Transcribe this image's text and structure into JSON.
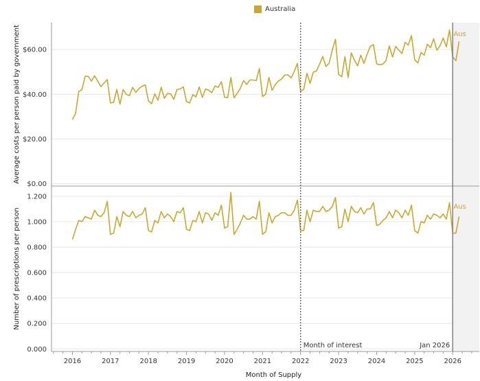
{
  "legend": {
    "label": "Australia",
    "color": "#c9a82c"
  },
  "colors": {
    "line": "#c9a82c",
    "grid": "#e6e6e6",
    "axis": "#999999",
    "shade": "#f2f2f2",
    "marker": "#888888"
  },
  "annotations": {
    "month_of_interest": "Month of interest",
    "jan_2026": "Jan 2026",
    "end_label": "Aus"
  },
  "chart_data": {
    "type": "line",
    "xlabel": "Month of Supply",
    "x_ticks": [
      "2016",
      "2017",
      "2018",
      "2019",
      "2020",
      "2021",
      "2022",
      "2023",
      "2024",
      "2025",
      "2026"
    ],
    "x_start": "2016-01",
    "x_domain": [
      2015.45,
      2026.7
    ],
    "markers": [
      {
        "at": "2022-01",
        "label": "Month of interest",
        "style": "dotted"
      },
      {
        "at": "2026-01",
        "label": "Jan 2026",
        "style": "solid"
      }
    ],
    "shaded_from": "2026-01",
    "panels": [
      {
        "ylabel": "Average costs per person paid by government",
        "ylim": [
          -1,
          72
        ],
        "y_ticks": [
          0,
          20,
          40,
          60
        ],
        "y_tick_labels": [
          "$0.00",
          "$20.00",
          "$40.00",
          "$60.00"
        ],
        "series": [
          {
            "name": "Australia",
            "values": [
              28.7,
              31.5,
              41.3,
              42,
              48,
              48,
              45.9,
              48.3,
              45.8,
              43.4,
              45,
              46.6,
              36.1,
              36.4,
              42.2,
              35.6,
              42.1,
              40,
              39.4,
              43.1,
              40.8,
              42.6,
              43.6,
              44.2,
              37,
              35.8,
              40.2,
              37.3,
              43.1,
              38.2,
              40.4,
              40.2,
              37.7,
              42.1,
              42.4,
              43.3,
              36.7,
              36.1,
              39.8,
              38.8,
              43.3,
              38.6,
              42.4,
              41.8,
              40.7,
              43.7,
              43.1,
              45.6,
              38.7,
              38.5,
              47.5,
              38.4,
              40.4,
              42.7,
              46.1,
              44.4,
              46.4,
              46.4,
              46.1,
              51.5,
              39,
              40.1,
              47.6,
              41.8,
              44.3,
              45.9,
              46.8,
              48.6,
              48.7,
              47.3,
              50.2,
              53.8,
              41.2,
              42.2,
              49.4,
              44.9,
              49.9,
              50.4,
              53.5,
              56.9,
              52.4,
              53.9,
              59.8,
              64.6,
              48.9,
              47.8,
              56.8,
              47.5,
              58.5,
              55.2,
              52.7,
              57.5,
              53.8,
              57.9,
              61.4,
              62.2,
              53.6,
              53.2,
              53.5,
              55.2,
              61.6,
              56.6,
              61.4,
              59.7,
              58.2,
              63.2,
              62,
              66.2,
              55.4,
              54,
              58.7,
              57.5,
              62.4,
              60.8,
              64.8,
              59.7,
              61.7,
              65.1,
              61.2,
              68.8,
              56.7,
              55,
              63.6
            ]
          }
        ]
      },
      {
        "ylabel": "Number of prescriptions per person",
        "ylim": [
          -0.02,
          1.28
        ],
        "y_ticks": [
          0,
          0.2,
          0.4,
          0.6,
          0.8,
          1.0,
          1.2
        ],
        "y_tick_labels": [
          "0.000",
          "0.200",
          "0.400",
          "0.600",
          "0.800",
          "1.000",
          "1.200"
        ],
        "series": [
          {
            "name": "Australia",
            "values": [
              0.86,
              0.94,
              1.01,
              1,
              1.04,
              1.03,
              1.02,
              1.09,
              1.05,
              1.04,
              1.07,
              1.16,
              0.9,
              0.91,
              1.04,
              0.96,
              1.08,
              1.05,
              1.04,
              1.08,
              1.03,
              1.05,
              1.06,
              1.11,
              0.93,
              0.92,
              1.01,
              0.99,
              1.08,
              1.03,
              1.06,
              1.04,
              1,
              1.08,
              1.07,
              1.11,
              0.94,
              0.93,
              1.01,
              1,
              1.08,
              0.99,
              1.07,
              1.06,
              1.01,
              1.07,
              1.05,
              1.13,
              0.95,
              0.96,
              1.23,
              0.9,
              0.94,
              0.99,
              1.05,
              1.02,
              1.02,
              1.04,
              1.02,
              1.16,
              0.9,
              0.92,
              1.07,
              0.99,
              1.04,
              1.05,
              1.07,
              1.07,
              1.05,
              1.05,
              1.09,
              1.17,
              0.93,
              0.93,
              1.09,
              1,
              1.09,
              1.08,
              1.08,
              1.12,
              1.08,
              1.09,
              1.12,
              1.19,
              0.95,
              0.96,
              1.1,
              1,
              1.12,
              1.08,
              1.07,
              1.11,
              1.06,
              1.1,
              1.1,
              1.15,
              0.97,
              0.98,
              1.01,
              1.03,
              1.08,
              1.03,
              1.09,
              1.07,
              1.03,
              1.09,
              1.05,
              1.13,
              0.93,
              0.91,
              1,
              0.99,
              1.05,
              1.02,
              1.06,
              1.05,
              1.03,
              1.06,
              1.02,
              1.15,
              0.91,
              0.91,
              1.04
            ]
          }
        ]
      }
    ]
  }
}
